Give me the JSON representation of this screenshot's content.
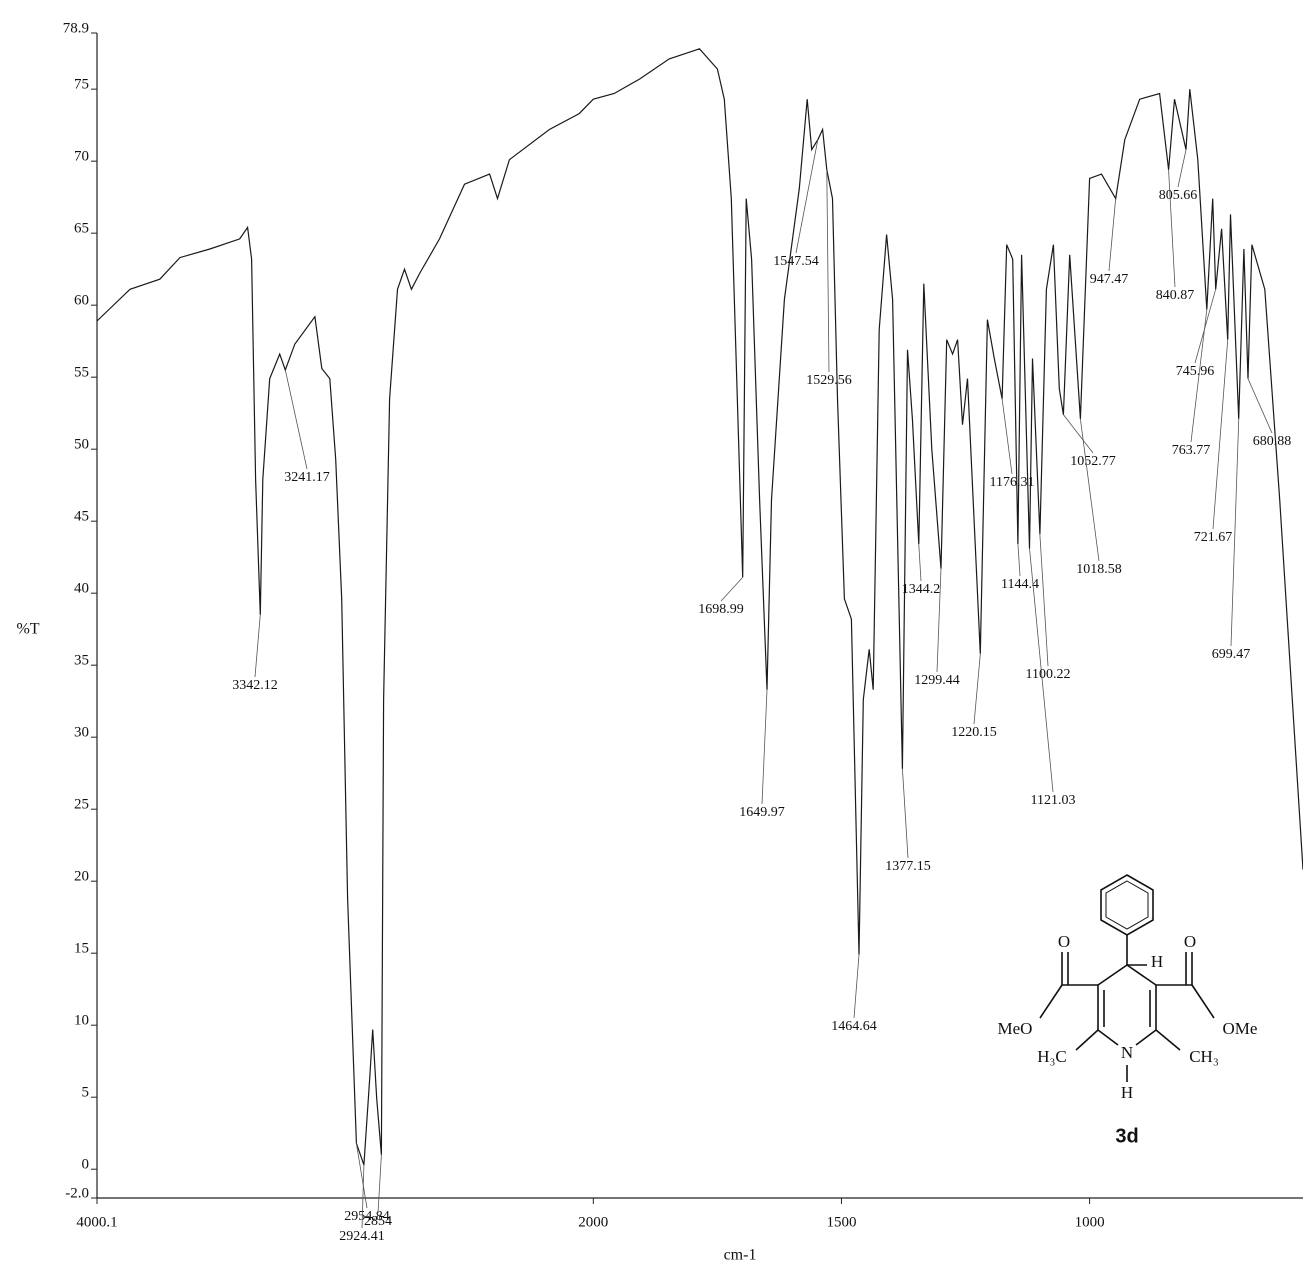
{
  "chart_data": {
    "type": "line",
    "x_label": "cm-1",
    "y_label": "%T",
    "xlim": [
      4000.1,
      570
    ],
    "x_scale_break": {
      "at": 2000,
      "factor": 2
    },
    "xticks": [
      4000.1,
      2000,
      1500,
      1000
    ],
    "ylim": [
      -2.0,
      78.9
    ],
    "yticks": [
      {
        "value": -2.0,
        "label": "-2.0"
      },
      0,
      5,
      10,
      15,
      20,
      25,
      30,
      35,
      40,
      45,
      50,
      55,
      60,
      65,
      70,
      75,
      78.9
    ],
    "color": "#1a1a1a",
    "x": [
      4000.1,
      3867,
      3747,
      3666,
      3545,
      3425,
      3393,
      3377,
      3361,
      3342.12,
      3332,
      3304,
      3264,
      3241.17,
      3203,
      3122,
      3094,
      3062,
      3038,
      3014,
      2990,
      2954.84,
      2924.41,
      2901,
      2889,
      2873,
      2854.0,
      2845,
      2821,
      2789,
      2761,
      2733,
      2700,
      2620,
      2519,
      2418,
      2386,
      2338,
      2177,
      2057,
      2000,
      1958,
      1907,
      1847,
      1786,
      1750,
      1736,
      1722,
      1698.99,
      1692,
      1681,
      1665,
      1649.97,
      1641,
      1615,
      1585,
      1569,
      1560,
      1547.54,
      1538,
      1529.56,
      1518,
      1508,
      1494,
      1480,
      1464.64,
      1456,
      1444,
      1436,
      1424,
      1409,
      1397,
      1377.15,
      1367,
      1357,
      1344.2,
      1334,
      1318,
      1299.44,
      1288,
      1276,
      1266,
      1256,
      1246,
      1220.15,
      1206,
      1192,
      1176.31,
      1167,
      1155,
      1144.4,
      1137,
      1121.03,
      1115,
      1100.22,
      1087,
      1073,
      1061,
      1052.77,
      1040,
      1018.58,
      1000,
      976,
      947.47,
      929,
      899,
      859,
      840.87,
      829,
      805.66,
      798,
      782,
      763.77,
      752,
      745.96,
      734,
      721.67,
      716,
      699.47,
      689,
      680.88,
      673,
      647,
      617,
      570
    ],
    "values": [
      58.9,
      61.1,
      61.8,
      63.3,
      63.9,
      64.6,
      65.4,
      63.2,
      47.9,
      38.5,
      47.9,
      54.9,
      56.6,
      55.5,
      57.3,
      59.2,
      55.6,
      54.9,
      49.3,
      39.6,
      18.8,
      1.8,
      0.3,
      6.3,
      9.7,
      4.9,
      1.0,
      32.6,
      53.5,
      61.1,
      62.5,
      61.1,
      62.2,
      64.6,
      68.4,
      69.1,
      67.4,
      70.1,
      72.2,
      73.3,
      74.3,
      74.7,
      75.7,
      77.1,
      77.8,
      76.4,
      74.3,
      67.4,
      41.1,
      67.4,
      63.2,
      46.5,
      33.3,
      46.5,
      60.4,
      68.1,
      74.3,
      70.8,
      71.5,
      72.2,
      69.4,
      67.4,
      53.5,
      39.6,
      38.2,
      14.9,
      32.6,
      36.1,
      33.3,
      58.3,
      64.9,
      60.4,
      27.8,
      56.9,
      52.1,
      43.4,
      61.5,
      50,
      41.7,
      57.6,
      56.6,
      57.6,
      51.7,
      54.9,
      35.8,
      59,
      56.3,
      53.5,
      64.2,
      63.2,
      43.4,
      63.5,
      43.1,
      56.3,
      44.1,
      61.1,
      64.2,
      54.2,
      52.4,
      63.5,
      52.1,
      68.8,
      69.1,
      67.4,
      71.5,
      74.3,
      74.7,
      69.4,
      74.3,
      70.8,
      75,
      70.1,
      59.7,
      67.4,
      61.1,
      65.3,
      57.6,
      66.3,
      52.1,
      63.9,
      54.9,
      64.2,
      61.1,
      46.5,
      20.8
    ],
    "peaks": {
      "x": [
        3342.12,
        3241.17,
        2954.84,
        2924.41,
        2854.0,
        1698.99,
        1649.97,
        1547.54,
        1529.56,
        1464.64,
        1377.15,
        1344.2,
        1299.44,
        1220.15,
        1176.31,
        1144.4,
        1121.03,
        1100.22,
        1052.77,
        1018.58,
        947.47,
        840.87,
        805.66,
        763.77,
        745.96,
        721.67,
        699.47,
        680.88
      ],
      "y": [
        38.5,
        55.5,
        1.8,
        0.3,
        1.0,
        41.1,
        33.3,
        71.5,
        69.4,
        14.9,
        27.8,
        43.4,
        41.7,
        35.8,
        53.5,
        43.4,
        43.1,
        44.1,
        52.4,
        52.1,
        67.4,
        69.4,
        70.8,
        59.7,
        61.1,
        57.6,
        52.1,
        54.9
      ]
    }
  },
  "structure": {
    "labels": [
      "O",
      "MeO",
      "O",
      "OMe",
      "H",
      "H₃C",
      "N",
      "CH₃",
      "H"
    ],
    "name": "3d"
  }
}
